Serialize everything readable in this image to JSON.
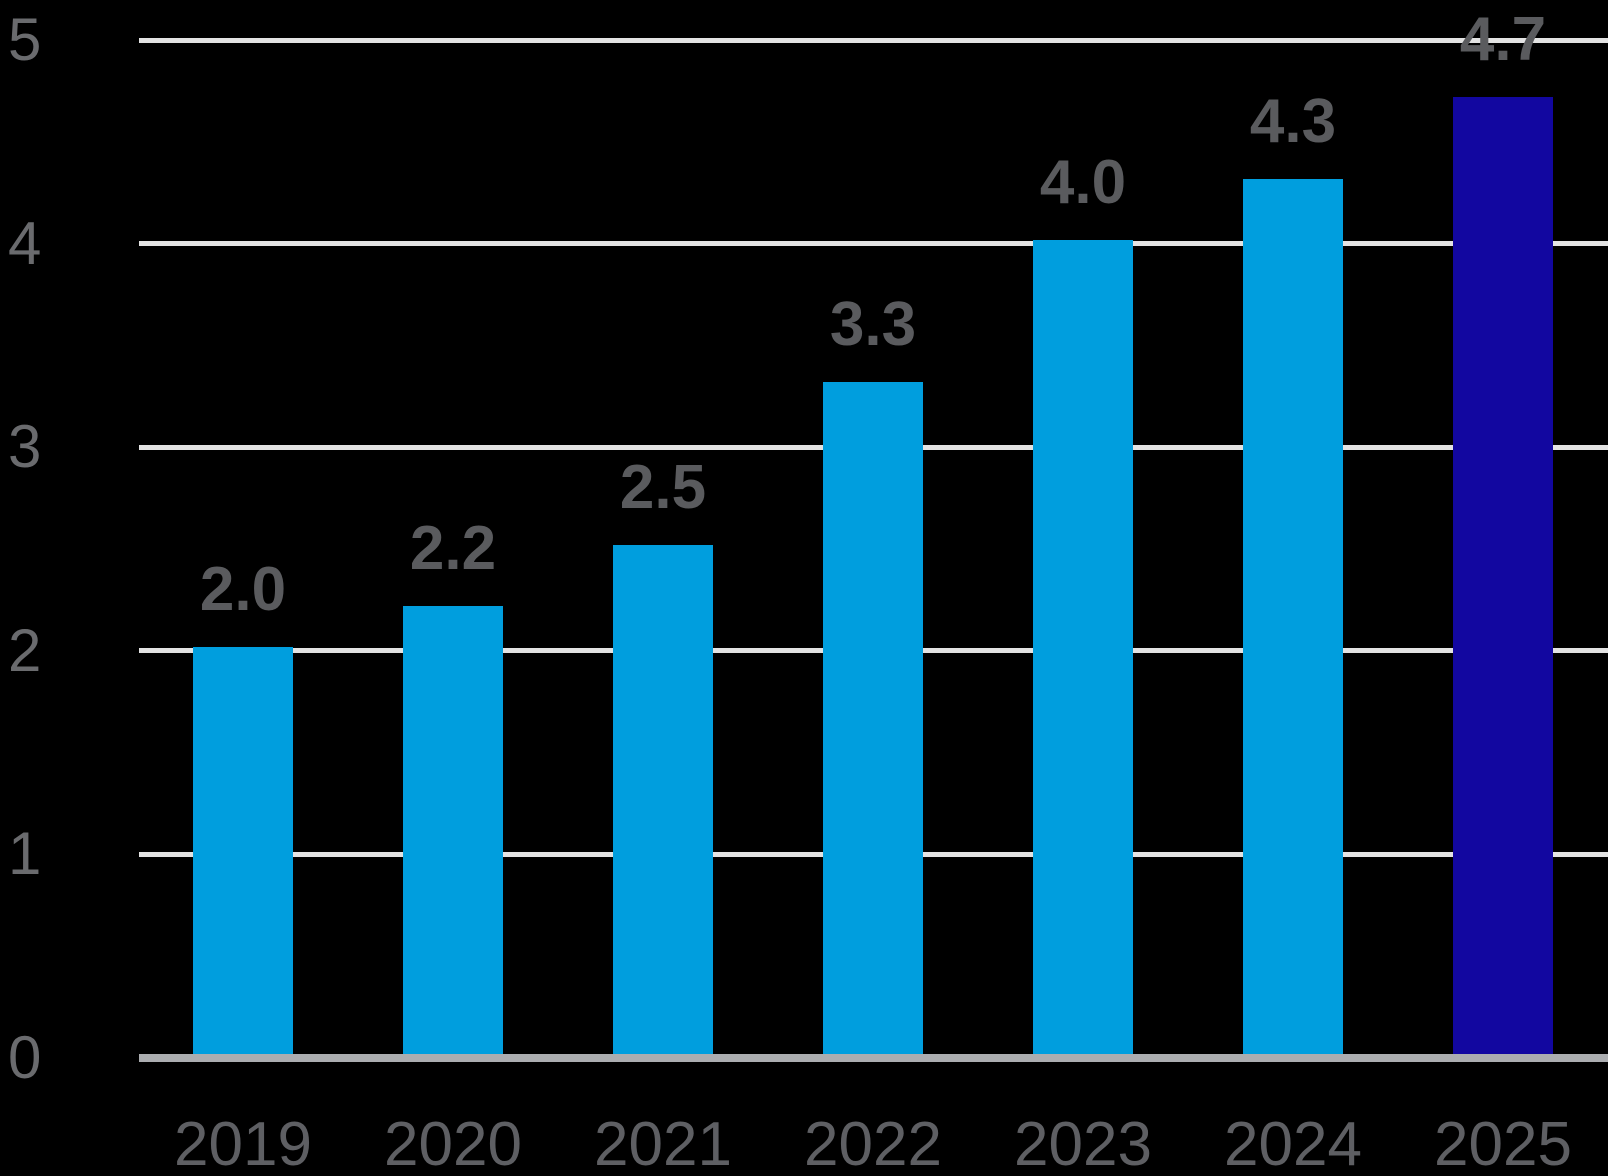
{
  "chart_data": {
    "type": "bar",
    "title": "",
    "xlabel": "",
    "ylabel": "",
    "categories": [
      "2019",
      "2020",
      "2021",
      "2022",
      "2023",
      "2024",
      "2025"
    ],
    "values": [
      2.0,
      2.2,
      2.5,
      3.3,
      4.0,
      4.3,
      4.7
    ],
    "value_labels": [
      "2.0",
      "2.2",
      "2.5",
      "3.3",
      "4.0",
      "4.3",
      "4.7"
    ],
    "ylim": [
      0,
      5
    ],
    "yticks": [
      0,
      1,
      2,
      3,
      4,
      5
    ],
    "ytick_labels": [
      "0",
      "1",
      "2",
      "3",
      "4",
      "5"
    ],
    "grid": true,
    "legend": false,
    "highlight_index": 6,
    "colors": {
      "background": "#000000",
      "bar_default": "#009EDE",
      "bar_highlight": "#1207A0",
      "gridline": "#E3E3E3",
      "baseline": "#ABADB0",
      "ytick_label": "#6A6B6E",
      "value_label": "#5A5B5E",
      "xtick_label": "#5E5F63"
    }
  }
}
